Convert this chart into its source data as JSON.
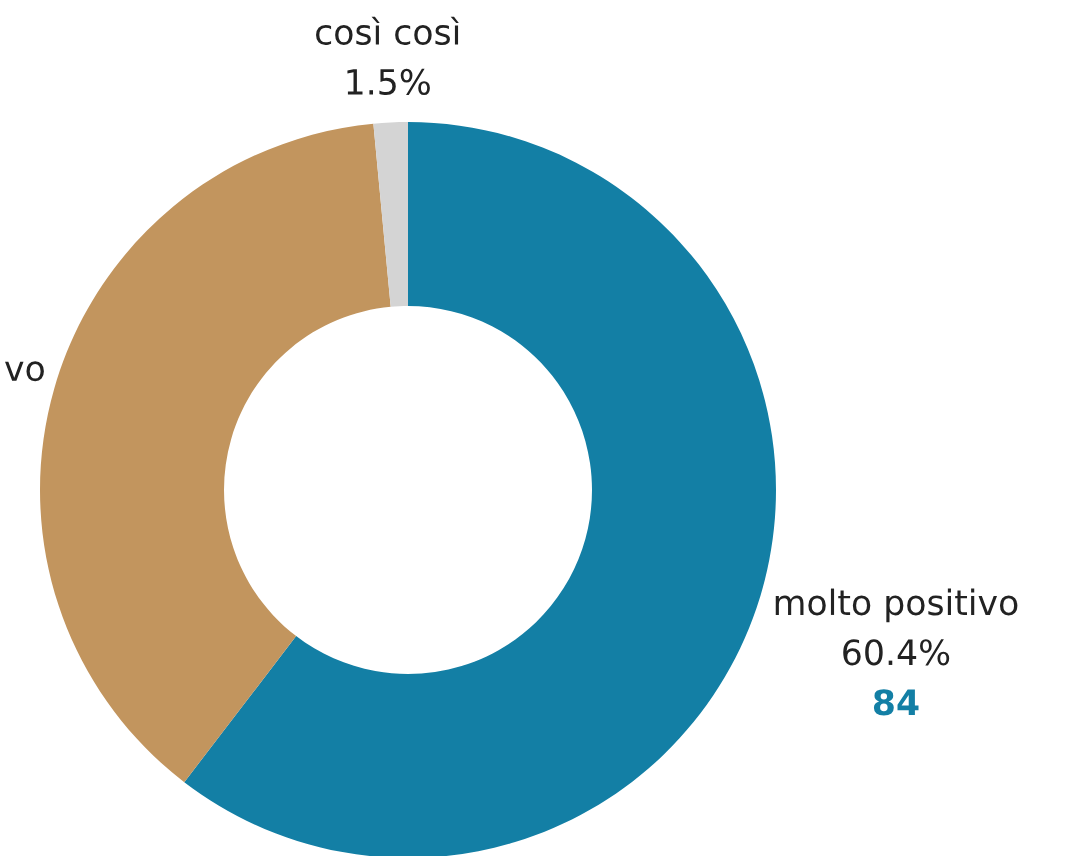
{
  "chart_data": {
    "type": "donut",
    "categories": [
      "molto positivo",
      "vo",
      "così così"
    ],
    "values": [
      60.4,
      38.1,
      1.5
    ],
    "colors": [
      "#137fa5",
      "#c2955e",
      "#d4d4d4"
    ],
    "value_labels": [
      "60.4%",
      null,
      "1.5%"
    ],
    "annotations": [
      {
        "text": "84",
        "x": "molto positivo"
      }
    ]
  }
}
